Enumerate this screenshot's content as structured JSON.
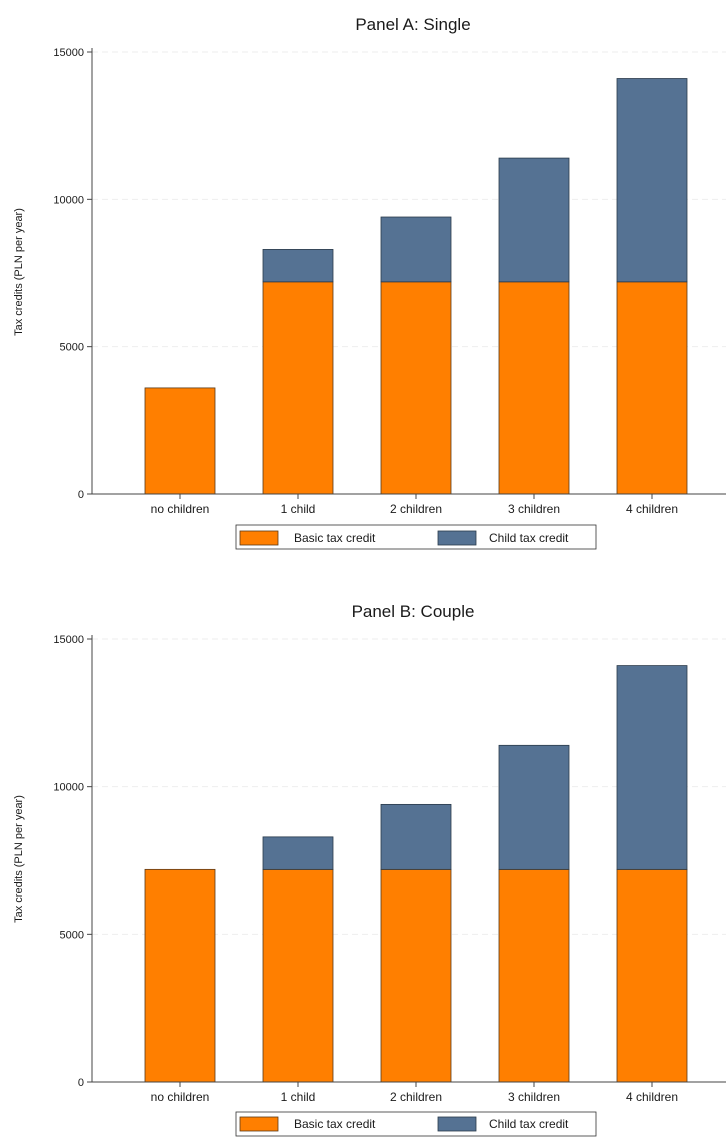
{
  "colors": {
    "basic": "#ff7f00",
    "child": "#557293"
  },
  "chart_data": [
    {
      "type": "bar",
      "stacked": true,
      "title": "Panel A: Single",
      "ylabel": "Tax credits (PLN per year)",
      "xlabel": "",
      "ylim": [
        0,
        15000
      ],
      "yticks": [
        "0",
        "5000",
        "10000",
        "15000"
      ],
      "categories": [
        "no children",
        "1 child",
        "2 children",
        "3 children",
        "4 children"
      ],
      "series": [
        {
          "name": "Basic tax credit",
          "values": [
            3600,
            7200,
            7200,
            7200,
            7200
          ]
        },
        {
          "name": "Child tax credit",
          "values": [
            0,
            1100,
            2200,
            4200,
            6900
          ]
        }
      ],
      "legend": "bottom",
      "grid": true
    },
    {
      "type": "bar",
      "stacked": true,
      "title": "Panel B: Couple",
      "ylabel": "Tax credits (PLN per year)",
      "xlabel": "",
      "ylim": [
        0,
        15000
      ],
      "yticks": [
        "0",
        "5000",
        "10000",
        "15000"
      ],
      "categories": [
        "no children",
        "1 child",
        "2 children",
        "3 children",
        "4 children"
      ],
      "series": [
        {
          "name": "Basic tax credit",
          "values": [
            7200,
            7200,
            7200,
            7200,
            7200
          ]
        },
        {
          "name": "Child tax credit",
          "values": [
            0,
            1100,
            2200,
            4200,
            6900
          ]
        }
      ],
      "legend": "bottom",
      "grid": true
    }
  ]
}
